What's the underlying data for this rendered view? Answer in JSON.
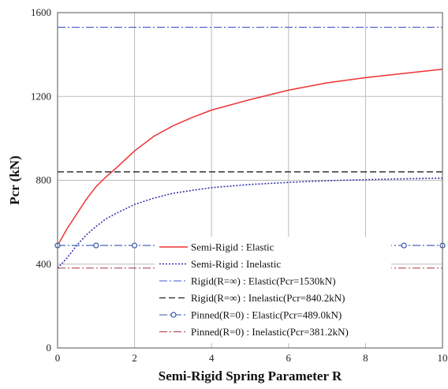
{
  "chart_data": {
    "type": "line",
    "xlabel": "Semi-Rigid Spring Parameter R",
    "ylabel": "Pcr (kN)",
    "xlim": [
      0,
      10
    ],
    "ylim": [
      0,
      1600
    ],
    "xticks": [
      "0",
      "2",
      "4",
      "6",
      "8",
      "10"
    ],
    "yticks": [
      "0",
      "400",
      "800",
      "1200",
      "1600"
    ],
    "grid": true,
    "legend_position": "bottom-center",
    "series": [
      {
        "name": "Semi-Rigid : Elastic",
        "color": "#ee3333",
        "style": "solid",
        "x": [
          0,
          0.25,
          0.5,
          0.75,
          1,
          1.25,
          1.5,
          2,
          2.5,
          3,
          3.5,
          4,
          5,
          6,
          7,
          8,
          9,
          10
        ],
        "y": [
          489,
          570,
          640,
          710,
          770,
          815,
          855,
          940,
          1010,
          1060,
          1100,
          1135,
          1185,
          1230,
          1265,
          1290,
          1310,
          1330
        ]
      },
      {
        "name": "Semi-Rigid : Inelastic",
        "color": "#3333aa",
        "style": "dotted",
        "x": [
          0,
          0.25,
          0.5,
          0.75,
          1,
          1.25,
          1.5,
          2,
          2.5,
          3,
          3.5,
          4,
          5,
          6,
          7,
          8,
          9,
          10
        ],
        "y": [
          381,
          430,
          490,
          540,
          580,
          615,
          640,
          685,
          715,
          738,
          752,
          765,
          780,
          790,
          798,
          803,
          807,
          810
        ]
      },
      {
        "name": "Rigid(R=∞) : Elastic(Pcr=1530kN)",
        "color": "#4455cc",
        "style": "dashdot",
        "x": [
          0,
          10
        ],
        "y": [
          1530,
          1530
        ]
      },
      {
        "name": "Rigid(R=∞) : Inelastic(Pcr=840.2kN)",
        "color": "#222222",
        "style": "dashed",
        "x": [
          0,
          10
        ],
        "y": [
          840.2,
          840.2
        ]
      },
      {
        "name": "Pinned(R=0) : Elastic(Pcr=489.0kN)",
        "color": "#3355aa",
        "style": "dashdot-marker",
        "x": [
          0,
          1,
          2,
          3,
          4,
          5,
          6,
          7,
          8,
          9,
          10
        ],
        "y": [
          489,
          489,
          489,
          489,
          489,
          489,
          489,
          489,
          489,
          489,
          489
        ]
      },
      {
        "name": "Pinned(R=0) : Inelastic(Pcr=381.2kN)",
        "color": "#aa3344",
        "style": "dashdot",
        "x": [
          0,
          10
        ],
        "y": [
          381.2,
          381.2
        ]
      }
    ]
  }
}
